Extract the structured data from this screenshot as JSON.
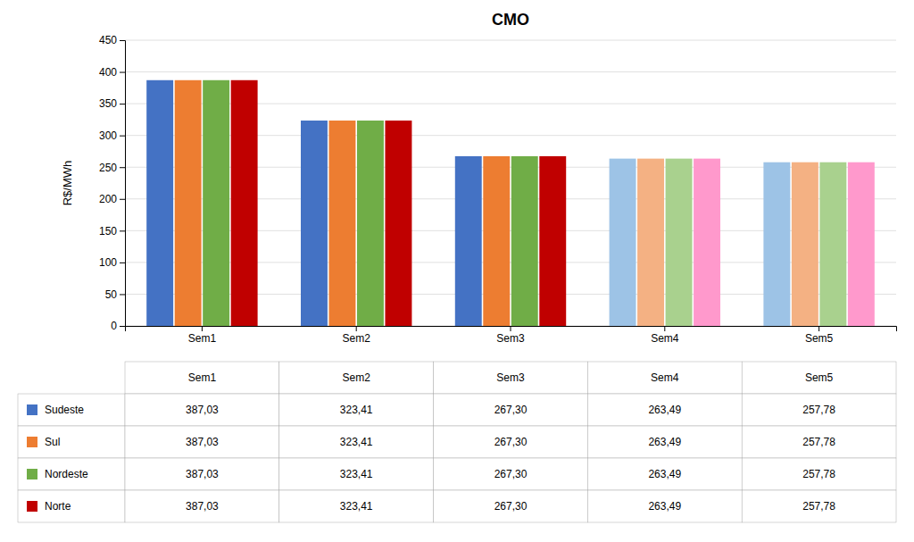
{
  "chart_data": {
    "type": "bar",
    "title": "CMO",
    "ylabel": "R$/MWh",
    "categories": [
      "Sem1",
      "Sem2",
      "Sem3",
      "Sem4",
      "Sem5"
    ],
    "series": [
      {
        "name": "Sudeste",
        "color": "#4472C4",
        "colors": [
          "#4472C4",
          "#4472C4",
          "#4472C4",
          "#9DC3E6",
          "#9DC3E6"
        ],
        "values": [
          387.03,
          323.41,
          267.3,
          263.49,
          257.78
        ],
        "value_labels": [
          "387,03",
          "323,41",
          "267,30",
          "263,49",
          "257,78"
        ]
      },
      {
        "name": "Sul",
        "color": "#ED7D31",
        "colors": [
          "#ED7D31",
          "#ED7D31",
          "#ED7D31",
          "#F4B183",
          "#F4B183"
        ],
        "values": [
          387.03,
          323.41,
          267.3,
          263.49,
          257.78
        ],
        "value_labels": [
          "387,03",
          "323,41",
          "267,30",
          "263,49",
          "257,78"
        ]
      },
      {
        "name": "Nordeste",
        "color": "#70AD47",
        "colors": [
          "#70AD47",
          "#70AD47",
          "#70AD47",
          "#A9D18E",
          "#A9D18E"
        ],
        "values": [
          387.03,
          323.41,
          267.3,
          263.49,
          257.78
        ],
        "value_labels": [
          "387,03",
          "323,41",
          "267,30",
          "263,49",
          "257,78"
        ]
      },
      {
        "name": "Norte",
        "color": "#C00000",
        "colors": [
          "#C00000",
          "#C00000",
          "#C00000",
          "#FF99CC",
          "#FF99CC"
        ],
        "values": [
          387.03,
          323.41,
          267.3,
          263.49,
          257.78
        ],
        "value_labels": [
          "387,03",
          "323,41",
          "267,30",
          "263,49",
          "257,78"
        ]
      }
    ],
    "ylim": [
      0,
      450
    ],
    "yticks": [
      0,
      50,
      100,
      150,
      200,
      250,
      300,
      350,
      400,
      450
    ],
    "grid": true
  }
}
